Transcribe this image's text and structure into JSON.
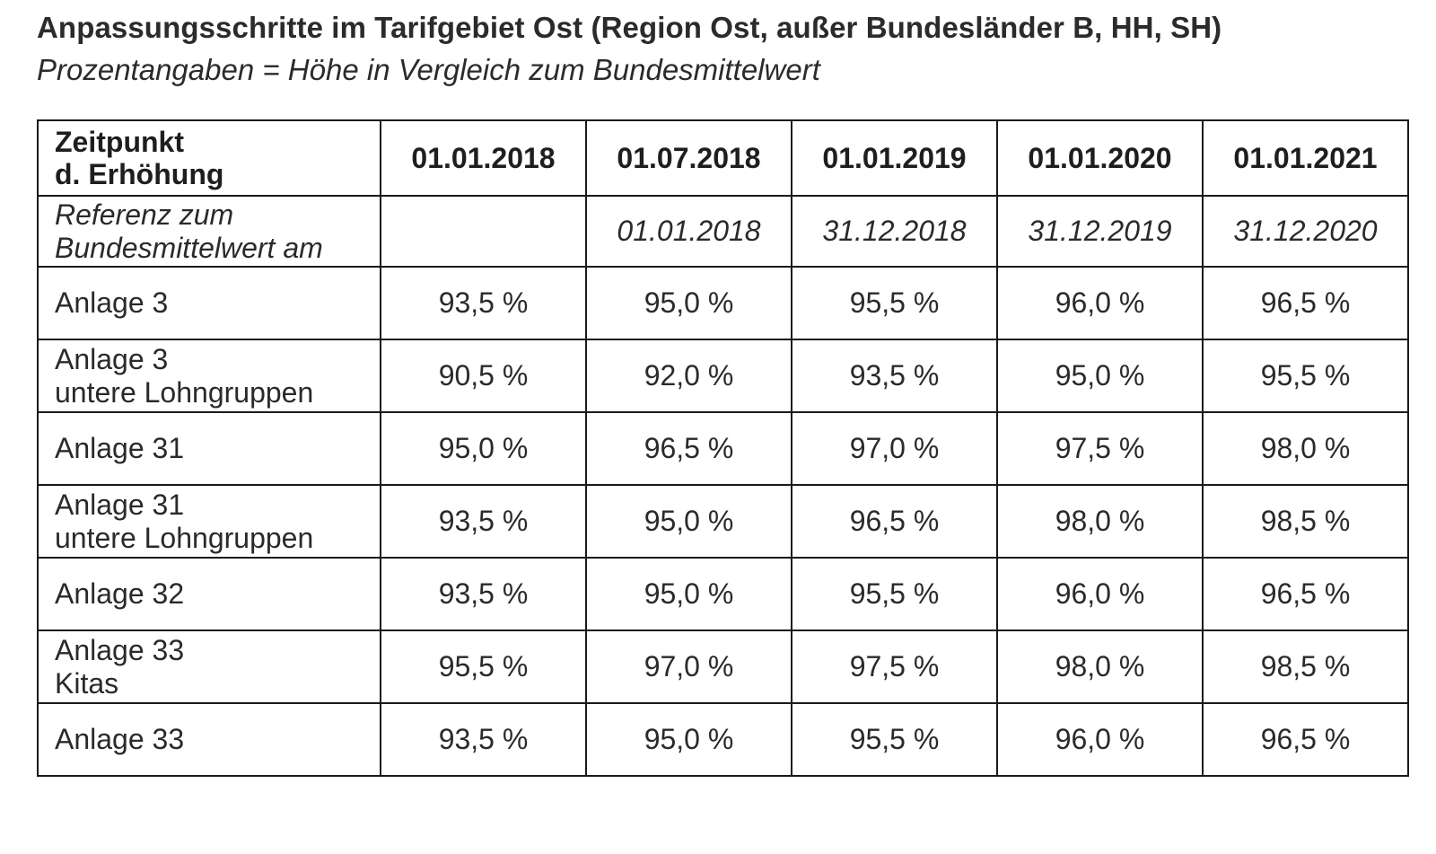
{
  "title": "Anpassungsschritte im Tarifgebiet Ost (Region Ost, außer Bundesländer B, HH, SH)",
  "subtitle": "Prozentangaben = Höhe in Vergleich zum Bundesmittelwert",
  "table": {
    "header_label": "Zeitpunkt\nd. Erhöhung",
    "dates": [
      "01.01.2018",
      "01.07.2018",
      "01.01.2019",
      "01.01.2020",
      "01.01.2021"
    ],
    "reference_label": "Referenz zum\nBundesmittelwert am",
    "reference_dates": [
      "",
      "01.01.2018",
      "31.12.2018",
      "31.12.2019",
      "31.12.2020"
    ],
    "rows": [
      {
        "label": "Anlage 3",
        "values": [
          "93,5 %",
          "95,0 %",
          "95,5 %",
          "96,0 %",
          "96,5 %"
        ]
      },
      {
        "label": "Anlage 3\nuntere Lohngruppen",
        "values": [
          "90,5 %",
          "92,0 %",
          "93,5 %",
          "95,0 %",
          "95,5 %"
        ]
      },
      {
        "label": "Anlage 31",
        "values": [
          "95,0 %",
          "96,5 %",
          "97,0 %",
          "97,5 %",
          "98,0 %"
        ]
      },
      {
        "label": "Anlage 31\nuntere Lohngruppen",
        "values": [
          "93,5 %",
          "95,0 %",
          "96,5 %",
          "98,0 %",
          "98,5 %"
        ]
      },
      {
        "label": "Anlage 32",
        "values": [
          "93,5 %",
          "95,0 %",
          "95,5 %",
          "96,0 %",
          "96,5 %"
        ]
      },
      {
        "label": "Anlage 33\nKitas",
        "values": [
          "95,5 %",
          "97,0 %",
          "97,5 %",
          "98,0 %",
          "98,5 %"
        ]
      },
      {
        "label": "Anlage 33",
        "values": [
          "93,5 %",
          "95,0 %",
          "95,5 %",
          "96,0 %",
          "96,5 %"
        ]
      }
    ]
  }
}
